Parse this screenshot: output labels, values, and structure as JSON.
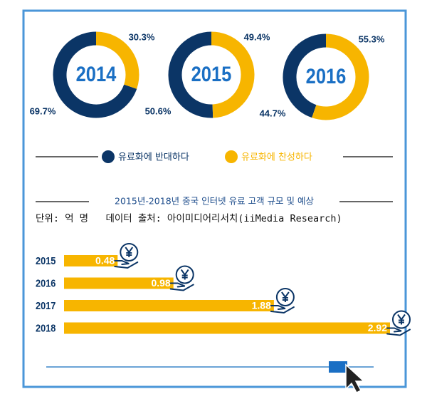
{
  "chart_data": [
    {
      "type": "donut",
      "categories": [
        "2014",
        "2015",
        "2016"
      ],
      "series": [
        {
          "name": "유료화에 반대하다",
          "color": "#0b3566",
          "values": [
            69.7,
            50.6,
            44.7
          ],
          "value_labels": [
            "69.7%",
            "50.6%",
            "44.7%"
          ]
        },
        {
          "name": "유료화에 찬성하다",
          "color": "#f7b500",
          "values": [
            30.3,
            49.4,
            55.3
          ],
          "value_labels": [
            "30.3%",
            "49.4%",
            "55.3%"
          ]
        }
      ]
    },
    {
      "type": "bar",
      "title": "2015년-2018년 중국 인터넷 유료 고객 규모 및 예상",
      "subtitle": "단위: 억 명   데이터 출처: 아이미디어리서치(iiMedia Research)",
      "categories": [
        "2015",
        "2016",
        "2017",
        "2018"
      ],
      "values": [
        0.48,
        0.98,
        1.88,
        2.92
      ],
      "color": "#f7b500",
      "orientation": "horizontal"
    }
  ]
}
